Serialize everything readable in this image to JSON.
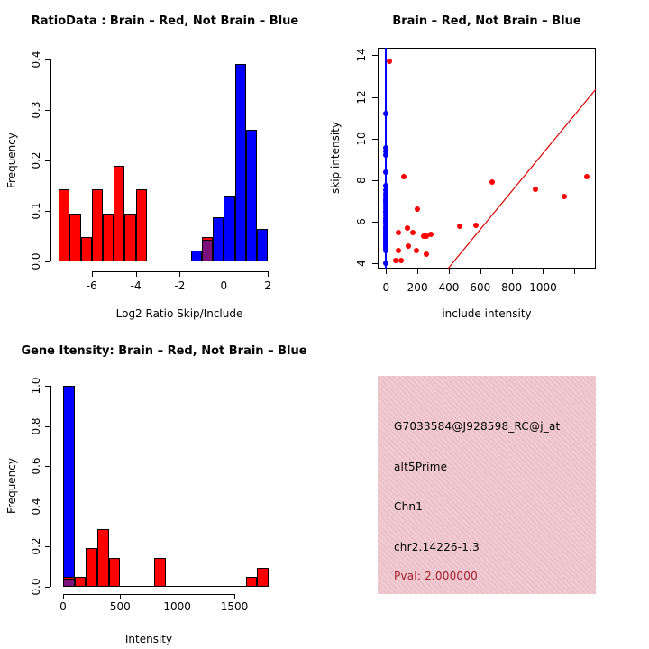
{
  "colors": {
    "red": "#ff0000",
    "blue": "#0000ff",
    "overlap_purple": "#7c117c",
    "axis_black": "#000000",
    "info_bg_pink": "#f0c6cd",
    "pval_dark_red": "#a01f2d",
    "diag_line_red": "#dd0000"
  },
  "chart_data": [
    {
      "id": "ratio-histogram",
      "type": "bar",
      "title": "RatioData : Brain – Red, Not Brain – Blue",
      "xlabel": "Log2 Ratio Skip/Include",
      "ylabel": "Frequency",
      "xlim": [
        -7.5,
        2
      ],
      "ylim": [
        0,
        0.4
      ],
      "x_ticks": [
        -6,
        -4,
        -2,
        0,
        2
      ],
      "x_tick_labels": [
        "-6",
        "-4",
        "-2",
        "0",
        "2"
      ],
      "y_ticks": [
        0,
        0.1,
        0.2,
        0.3,
        0.4
      ],
      "y_tick_labels": [
        "0.0",
        "0.1",
        "0.2",
        "0.3",
        "0.4"
      ],
      "bin_width": 0.5,
      "baseline": {
        "from": -7.5,
        "to": 2
      },
      "series": [
        {
          "name": "brain-red",
          "color_key": "red",
          "bars": [
            {
              "x0": -7.5,
              "h": 0.143
            },
            {
              "x0": -7.0,
              "h": 0.095
            },
            {
              "x0": -6.5,
              "h": 0.048
            },
            {
              "x0": -6.0,
              "h": 0.143
            },
            {
              "x0": -5.5,
              "h": 0.095
            },
            {
              "x0": -5.0,
              "h": 0.19
            },
            {
              "x0": -4.5,
              "h": 0.095
            },
            {
              "x0": -4.0,
              "h": 0.143
            }
          ]
        },
        {
          "name": "not-brain-blue",
          "color_key": "blue",
          "bars": [
            {
              "x0": -1.5,
              "h": 0.022
            },
            {
              "x0": -0.5,
              "h": 0.087
            },
            {
              "x0": 0.0,
              "h": 0.13
            },
            {
              "x0": 0.5,
              "h": 0.391
            },
            {
              "x0": 1.0,
              "h": 0.261
            },
            {
              "x0": 1.5,
              "h": 0.065
            }
          ]
        },
        {
          "name": "overlap",
          "color_key": "overlap_purple",
          "overlap_bars": [
            {
              "x0": -1.0,
              "h_red": 0.048,
              "h_purple": 0.043
            }
          ]
        }
      ]
    },
    {
      "id": "intensity-scatter",
      "type": "scatter",
      "title": "Brain – Red, Not Brain – Blue",
      "xlabel": "include intensity",
      "ylabel": "skip intensity",
      "xlim": [
        -53,
        1336
      ],
      "ylim": [
        3.73,
        14.36
      ],
      "x_ticks": [
        0,
        200,
        400,
        600,
        800,
        1000,
        1200
      ],
      "x_tick_labels": [
        "0",
        "200",
        "400",
        "600",
        "800",
        "1000",
        ""
      ],
      "y_ticks": [
        4,
        6,
        8,
        10,
        12,
        14
      ],
      "y_tick_labels": [
        "4",
        "6",
        "8",
        "10",
        "12",
        "14"
      ],
      "vline": {
        "x": 0,
        "color_key": "blue"
      },
      "diag_line": {
        "x1": 394,
        "y1": 3.75,
        "x2": 1336,
        "y2": 12.37,
        "color_key": "diag_line_red"
      },
      "red_points": [
        [
          20,
          13.7
        ],
        [
          115,
          8.15
        ],
        [
          197,
          6.6
        ],
        [
          676,
          7.9
        ],
        [
          953,
          7.55
        ],
        [
          1133,
          7.2
        ],
        [
          1277,
          8.18
        ],
        [
          77,
          5.47
        ],
        [
          134,
          5.69
        ],
        [
          172,
          5.5
        ],
        [
          240,
          5.3
        ],
        [
          259,
          5.32
        ],
        [
          287,
          5.4
        ],
        [
          469,
          5.78
        ],
        [
          575,
          5.85
        ],
        [
          140,
          4.85
        ],
        [
          77,
          4.63
        ],
        [
          192,
          4.63
        ],
        [
          258,
          4.46
        ],
        [
          63,
          4.13
        ],
        [
          96,
          4.13
        ]
      ],
      "blue_points_x": 0,
      "blue_points_y": [
        4.0,
        4.63,
        4.72,
        4.8,
        4.88,
        4.96,
        5.04,
        5.12,
        5.2,
        5.28,
        5.36,
        5.44,
        5.52,
        5.6,
        5.7,
        5.8,
        5.9,
        6.0,
        6.1,
        6.2,
        6.3,
        6.42,
        6.54,
        6.66,
        6.78,
        6.9,
        7.0,
        7.1,
        7.22,
        7.35,
        7.5,
        7.72,
        8.4,
        9.2,
        9.38,
        9.55,
        11.2
      ]
    },
    {
      "id": "gene-intensity-histogram",
      "type": "bar",
      "title": "Gene Itensity: Brain – Red, Not Brain – Blue",
      "xlabel": "Intensity",
      "ylabel": "Frequency",
      "xlim": [
        0,
        1800
      ],
      "ylim": [
        0,
        1.0
      ],
      "x_ticks": [
        0,
        500,
        1000,
        1500
      ],
      "x_tick_labels": [
        "0",
        "500",
        "1000",
        "1500"
      ],
      "y_ticks": [
        0,
        0.2,
        0.4,
        0.6,
        0.8,
        1.0
      ],
      "y_tick_labels": [
        "0.0",
        "0.2",
        "0.4",
        "0.6",
        "0.8",
        "1.0"
      ],
      "bin_width": 100,
      "baseline": {
        "from": 0,
        "to": 1800
      },
      "series": [
        {
          "name": "not-brain-blue",
          "color_key": "blue",
          "bars": [
            {
              "x0": 0,
              "h": 1.0
            }
          ]
        },
        {
          "name": "brain-red",
          "color_key": "red",
          "bars": [
            {
              "x0": 100,
              "h": 0.048
            },
            {
              "x0": 200,
              "h": 0.19
            },
            {
              "x0": 300,
              "h": 0.286
            },
            {
              "x0": 400,
              "h": 0.143
            },
            {
              "x0": 800,
              "h": 0.143
            },
            {
              "x0": 1600,
              "h": 0.048
            },
            {
              "x0": 1700,
              "h": 0.095
            }
          ]
        },
        {
          "name": "overlap",
          "color_key": "overlap_purple",
          "overlap_bars": [
            {
              "x0": 0,
              "h_red": 0.048,
              "h_purple": 0.04
            }
          ]
        }
      ]
    },
    {
      "id": "gene-info",
      "type": "table",
      "lines": [
        {
          "text": "G7033584@J928598_RC@j_at",
          "color_key": "axis_black"
        },
        {
          "text": "alt5Prime",
          "color_key": "axis_black"
        },
        {
          "text": "Chn1",
          "color_key": "axis_black"
        },
        {
          "text": "chr2.14226-1.3",
          "color_key": "axis_black"
        },
        {
          "text": "Pval: 2.000000",
          "color_key": "pval_dark_red"
        }
      ]
    }
  ]
}
